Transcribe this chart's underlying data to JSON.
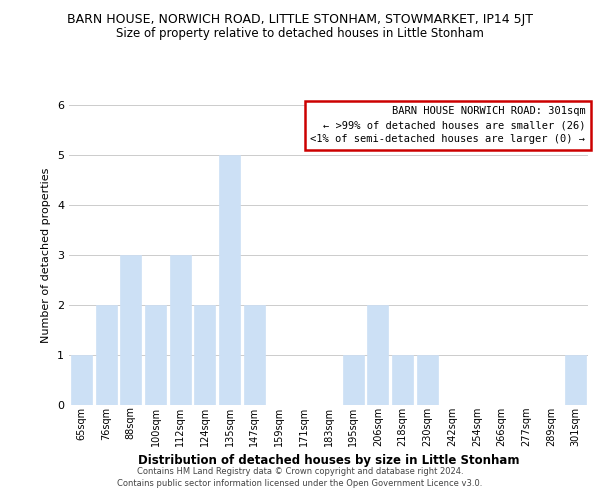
{
  "title": "BARN HOUSE, NORWICH ROAD, LITTLE STONHAM, STOWMARKET, IP14 5JT",
  "subtitle": "Size of property relative to detached houses in Little Stonham",
  "xlabel": "Distribution of detached houses by size in Little Stonham",
  "ylabel": "Number of detached properties",
  "bar_color": "#cce0f5",
  "bar_edge_color": "#cce0f5",
  "categories": [
    "65sqm",
    "76sqm",
    "88sqm",
    "100sqm",
    "112sqm",
    "124sqm",
    "135sqm",
    "147sqm",
    "159sqm",
    "171sqm",
    "183sqm",
    "195sqm",
    "206sqm",
    "218sqm",
    "230sqm",
    "242sqm",
    "254sqm",
    "266sqm",
    "277sqm",
    "289sqm",
    "301sqm"
  ],
  "values": [
    1,
    2,
    3,
    2,
    3,
    2,
    5,
    2,
    0,
    0,
    0,
    1,
    2,
    1,
    1,
    0,
    0,
    0,
    0,
    0,
    1
  ],
  "ylim": [
    0,
    6
  ],
  "yticks": [
    0,
    1,
    2,
    3,
    4,
    5,
    6
  ],
  "legend_title": "BARN HOUSE NORWICH ROAD: 301sqm",
  "legend_line1": "← >99% of detached houses are smaller (26)",
  "legend_line2": "<1% of semi-detached houses are larger (0) →",
  "legend_box_edge_color": "#cc0000",
  "footer_line1": "Contains HM Land Registry data © Crown copyright and database right 2024.",
  "footer_line2": "Contains public sector information licensed under the Open Government Licence v3.0.",
  "background_color": "#ffffff",
  "grid_color": "#cccccc"
}
